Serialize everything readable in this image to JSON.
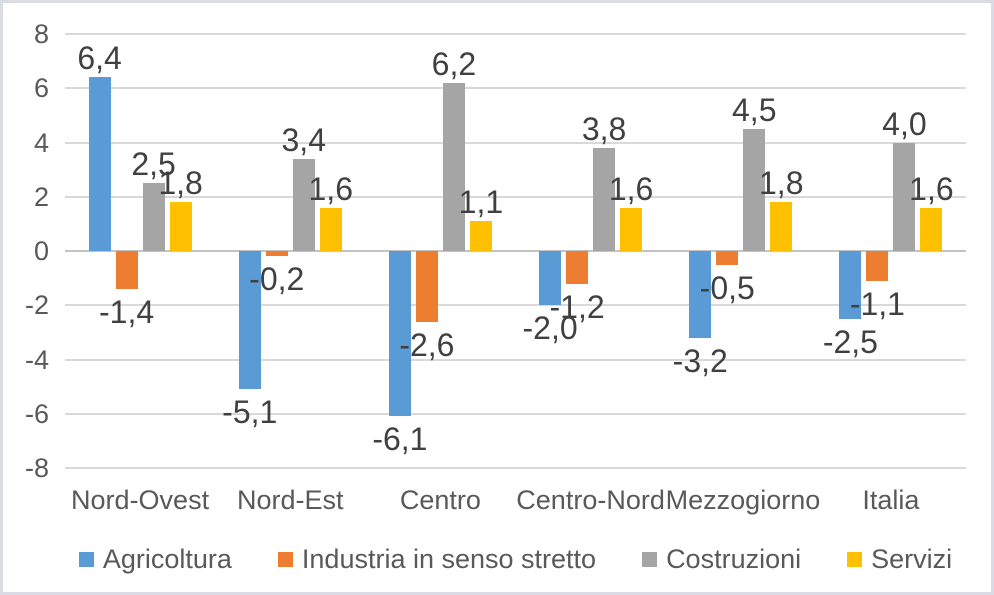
{
  "frame": {
    "background": "#ffffff",
    "border_color": "#d9dde3"
  },
  "chart_data": {
    "type": "bar",
    "title": "",
    "xlabel": "",
    "ylabel": "",
    "categories": [
      "Nord-Ovest",
      "Nord-Est",
      "Centro",
      "Centro-Nord",
      "Mezzogiorno",
      "Italia"
    ],
    "series": [
      {
        "name": "Agricoltura",
        "color": "#5B9BD5",
        "values": [
          6.4,
          -5.1,
          -6.1,
          -2.0,
          -3.2,
          -2.5
        ],
        "labels": [
          "6,4",
          "-5,1",
          "-6,1",
          "-2,0",
          "-3,2",
          "-2,5"
        ]
      },
      {
        "name": "Industria in senso stretto",
        "color": "#ED7D31",
        "values": [
          -1.4,
          -0.2,
          -2.6,
          -1.2,
          -0.5,
          -1.1
        ],
        "labels": [
          "-1,4",
          "-0,2",
          "-2,6",
          "-1,2",
          "-0,5",
          "-1,1"
        ]
      },
      {
        "name": "Costruzioni",
        "color": "#A5A5A5",
        "values": [
          2.5,
          3.4,
          6.2,
          3.8,
          4.5,
          4.0
        ],
        "labels": [
          "2,5",
          "3,4",
          "6,2",
          "3,8",
          "4,5",
          "4,0"
        ]
      },
      {
        "name": "Servizi",
        "color": "#FFC000",
        "values": [
          1.8,
          1.6,
          1.1,
          1.6,
          1.8,
          1.6
        ],
        "labels": [
          "1,8",
          "1,6",
          "1,1",
          "1,6",
          "1,8",
          "1,6"
        ]
      }
    ],
    "ylim": [
      -8,
      8
    ],
    "ytick_step": 2,
    "yticks": [
      8,
      6,
      4,
      2,
      0,
      -2,
      -4,
      -6,
      -8
    ],
    "grid": true,
    "gridline_color": "#d9d9d9",
    "zero_line_color": "#c3c3c3",
    "axis_text_color": "#595959",
    "data_label_color": "#404040",
    "legend_position": "bottom"
  }
}
